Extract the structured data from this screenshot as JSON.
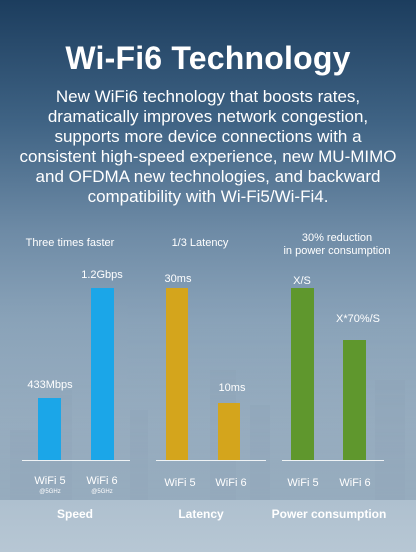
{
  "header": {
    "title": "Wi-Fi6 Technology",
    "description": "New WiFi6 technology that boosts rates, dramatically improves network congestion, supports more device connections with a consistent high-speed experience, new MU-MIMO and OFDMA new technologies, and backward compatibility with Wi-Fi5/Wi-Fi4."
  },
  "colors": {
    "speed": "#1ba6e8",
    "latency": "#d4a51c",
    "power": "#5f972d"
  },
  "chart_data": [
    {
      "type": "bar",
      "title": "Three times faster",
      "categories": [
        "WiFi 5",
        "WiFi 6"
      ],
      "category_subtitles": [
        "@5GHz",
        "@5GHz"
      ],
      "values": [
        433,
        1200
      ],
      "value_labels": [
        "433Mbps",
        "1.2Gbps"
      ],
      "footer": "Speed"
    },
    {
      "type": "bar",
      "title": "1/3 Latency",
      "categories": [
        "WiFi 5",
        "WiFi 6"
      ],
      "values": [
        30,
        10
      ],
      "value_labels": [
        "30ms",
        "10ms"
      ],
      "footer": "Latency"
    },
    {
      "type": "bar",
      "title_line1": "30% reduction",
      "title_line2": "in power consumption",
      "categories": [
        "WiFi 5",
        "WiFi 6"
      ],
      "values": [
        100,
        70
      ],
      "value_labels": [
        "X/S",
        "X*70%/S"
      ],
      "footer": "Power consumption"
    }
  ]
}
